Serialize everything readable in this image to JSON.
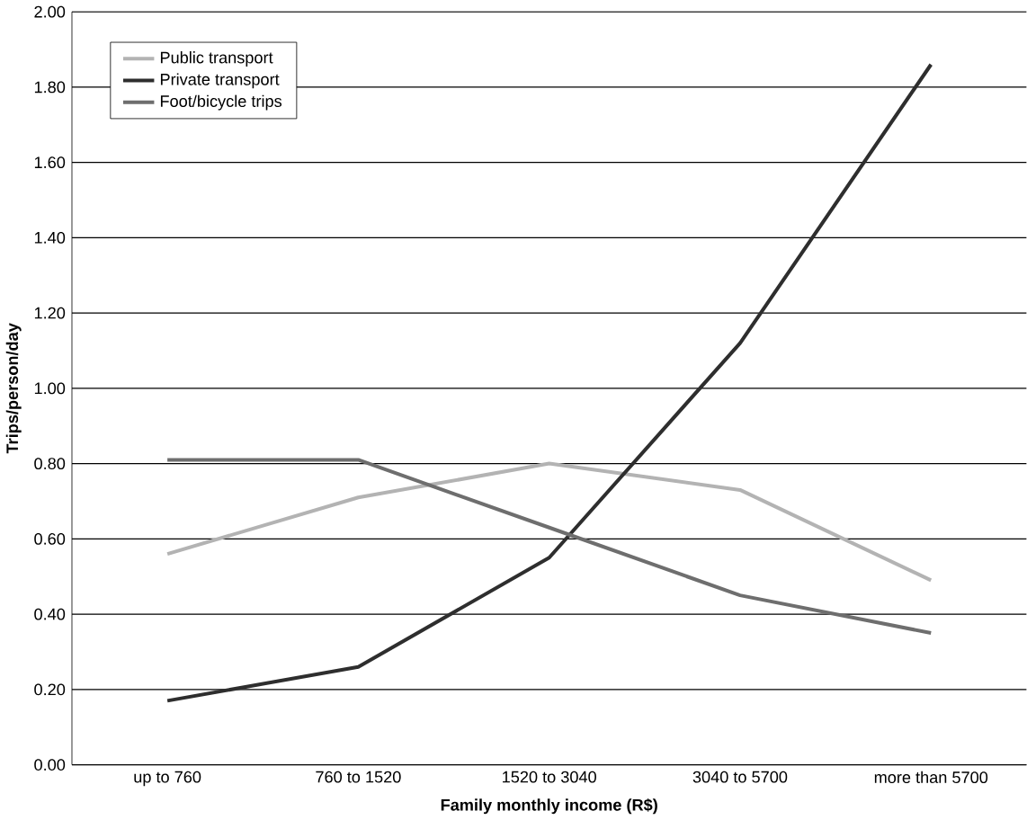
{
  "chart_data": {
    "type": "line",
    "xlabel": "Family monthly income (R$)",
    "ylabel": "Trips/person/day",
    "categories": [
      "up to 760",
      "760 to 1520",
      "1520 to 3040",
      "3040 to 5700",
      "more than 5700"
    ],
    "series": [
      {
        "name": "Public transport",
        "color": "#b3b3b3",
        "values": [
          0.56,
          0.71,
          0.8,
          0.73,
          0.49
        ]
      },
      {
        "name": "Private transport",
        "color": "#2e2e2e",
        "values": [
          0.17,
          0.26,
          0.55,
          1.12,
          1.86
        ]
      },
      {
        "name": "Foot/bicycle trips",
        "color": "#6e6e6e",
        "values": [
          0.81,
          0.81,
          0.63,
          0.45,
          0.35
        ]
      }
    ],
    "ylim": [
      0,
      2
    ],
    "yticks": [
      {
        "value": 0,
        "label": "0.00"
      },
      {
        "value": 0.2,
        "label": "0.20"
      },
      {
        "value": 0.4,
        "label": "0.40"
      },
      {
        "value": 0.6,
        "label": "0.60"
      },
      {
        "value": 0.8,
        "label": "0.80"
      },
      {
        "value": 1.0,
        "label": "1.00"
      },
      {
        "value": 1.2,
        "label": "1.20"
      },
      {
        "value": 1.4,
        "label": "1.40"
      },
      {
        "value": 1.6,
        "label": "1.60"
      },
      {
        "value": 1.8,
        "label": "1.80"
      },
      {
        "value": 2.0,
        "label": "2.00"
      }
    ],
    "grid": "y",
    "legend": "top left",
    "marker": "none",
    "line_style": "solid"
  }
}
